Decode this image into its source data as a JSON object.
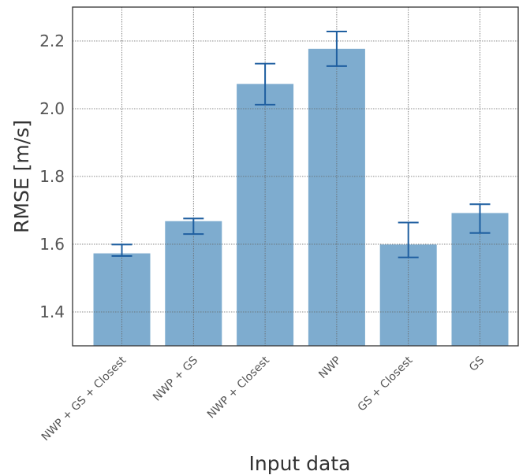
{
  "chart_data": {
    "type": "bar",
    "title": "",
    "xlabel": "Input data",
    "ylabel": "RMSE [m/s]",
    "categories": [
      "NWP + GS + Closest",
      "NWP + GS",
      "NWP + Closest",
      "NWP",
      "GS + Closest",
      "GS"
    ],
    "values": [
      1.573,
      1.668,
      2.073,
      2.177,
      1.599,
      1.692
    ],
    "error_low": [
      1.565,
      1.63,
      2.012,
      2.126,
      1.561,
      1.633
    ],
    "error_high": [
      1.599,
      1.676,
      2.133,
      2.228,
      1.664,
      1.718
    ],
    "ylim": [
      1.3,
      2.3
    ],
    "yticks": [
      1.4,
      1.6,
      1.8,
      2.0,
      2.2
    ],
    "ytick_labels": [
      "1.4",
      "1.6",
      "1.8",
      "2.0",
      "2.2"
    ],
    "grid": true,
    "bar_color": "#7eaccf",
    "error_color": "#1f5fa0",
    "grid_color": "#666666",
    "axis_color": "#333333"
  }
}
